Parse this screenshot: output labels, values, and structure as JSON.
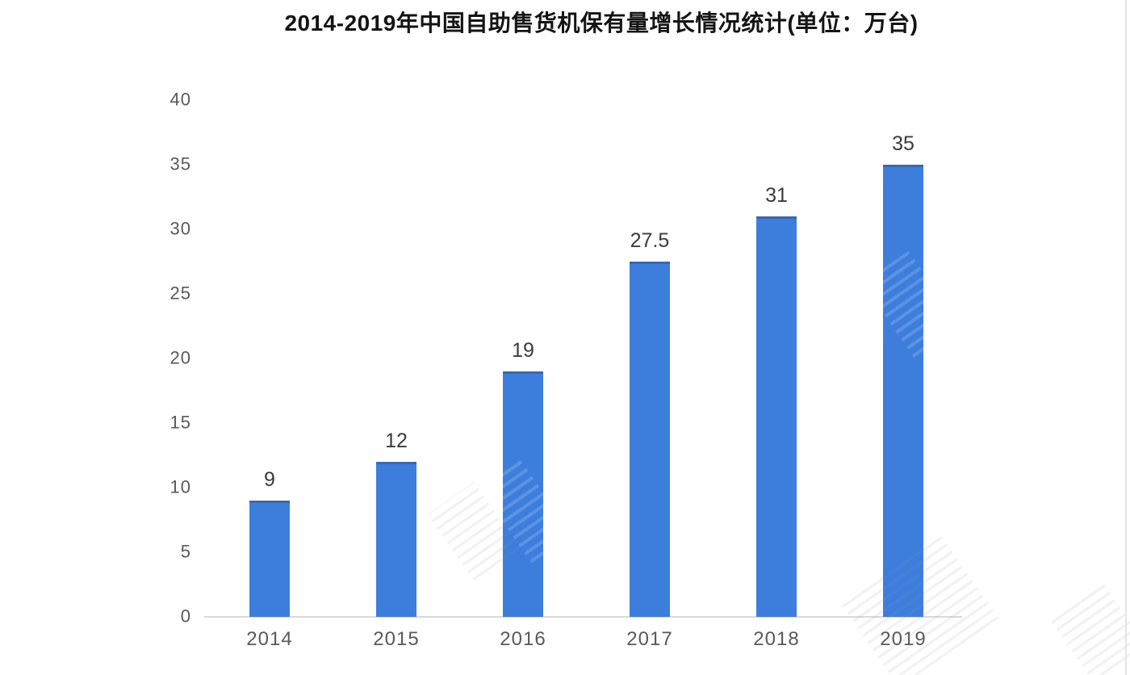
{
  "page": {
    "background": "#ffffff"
  },
  "chart_data": {
    "type": "bar",
    "title": "2014-2019年中国自助售货机保有量增长情况统计(单位：万台)",
    "unit": "万台",
    "categories": [
      "2014",
      "2015",
      "2016",
      "2017",
      "2018",
      "2019"
    ],
    "values": [
      9,
      12,
      19,
      27.5,
      31,
      35
    ],
    "yticks": [
      0,
      5,
      10,
      15,
      20,
      25,
      30,
      35,
      40
    ],
    "ylim": [
      0,
      40
    ],
    "xlabel": "",
    "ylabel": "",
    "grid": false,
    "legend_position": "none",
    "colors": {
      "bar": "#3d7edd",
      "bar_top_edge": "#475568",
      "axis_labels": "#595959",
      "value_labels": "#3a3a3a",
      "title": "#141414",
      "axis_line": "#d9d9d9"
    }
  }
}
